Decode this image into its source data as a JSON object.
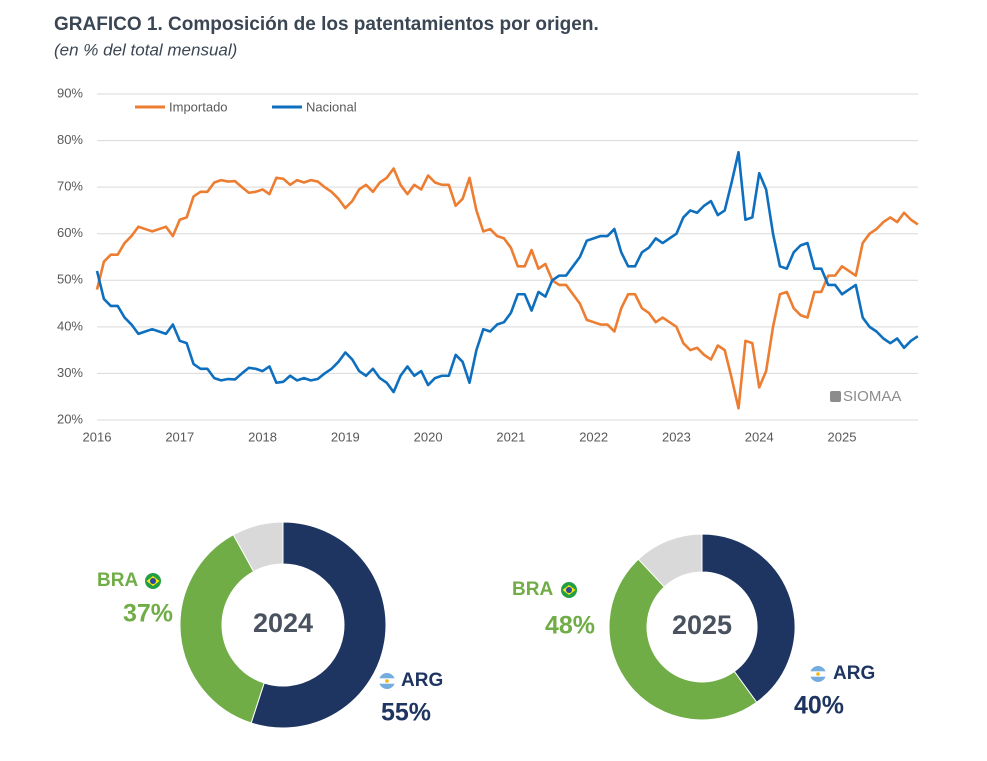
{
  "chart_data": [
    {
      "type": "line",
      "title": "GRAFICO 1. Composición de los patentamientos por origen.",
      "subtitle": "(en % del total mensual)",
      "watermark": "SIOMAA",
      "legend": "upper left",
      "grid": true,
      "categories": [
        "2016",
        null,
        null,
        null,
        null,
        null,
        null,
        null,
        null,
        null,
        null,
        null,
        "2017",
        null,
        null,
        null,
        null,
        null,
        null,
        null,
        null,
        null,
        null,
        null,
        "2018",
        null,
        null,
        null,
        null,
        null,
        null,
        null,
        null,
        null,
        null,
        null,
        "2019",
        null,
        null,
        null,
        null,
        null,
        null,
        null,
        null,
        null,
        null,
        null,
        "2020",
        null,
        null,
        null,
        null,
        null,
        null,
        null,
        null,
        null,
        null,
        null,
        "2021",
        null,
        null,
        null,
        null,
        null,
        null,
        null,
        null,
        null,
        null,
        null,
        "2022",
        null,
        null,
        null,
        null,
        null,
        null,
        null,
        null,
        null,
        null,
        null,
        "2023",
        null,
        null,
        null,
        null,
        null,
        null,
        null,
        null,
        null,
        null,
        null,
        "2024",
        null,
        null,
        null,
        null,
        null,
        null,
        null,
        null,
        null,
        null,
        null,
        "2025",
        null,
        null,
        null,
        null,
        null,
        null,
        null,
        null,
        null,
        null,
        null
      ],
      "ylim": [
        20,
        90
      ],
      "yticks": [
        {
          "value": 20,
          "label": "20%"
        },
        {
          "value": 30,
          "label": "30%"
        },
        {
          "value": 40,
          "label": "40%"
        },
        {
          "value": 50,
          "label": "50%"
        },
        {
          "value": 60,
          "label": "60%"
        },
        {
          "value": 70,
          "label": "70%"
        },
        {
          "value": 80,
          "label": "80%"
        },
        {
          "value": 90,
          "label": "90%"
        }
      ],
      "series": [
        {
          "name": "Importado",
          "color": "#ed7d31",
          "values": [
            48,
            54,
            55.5,
            55.5,
            58,
            59.5,
            61.5,
            61,
            60.5,
            61,
            61.5,
            59.5,
            63,
            63.5,
            68,
            69,
            69,
            71,
            71.5,
            71.2,
            71.3,
            70,
            68.8,
            69,
            69.5,
            68.5,
            72,
            71.8,
            70.5,
            71.5,
            71,
            71.5,
            71.2,
            70,
            69,
            67.5,
            65.5,
            67,
            69.5,
            70.5,
            69,
            71,
            72,
            74,
            70.5,
            68.5,
            70.5,
            69.5,
            72.5,
            71,
            70.5,
            70.5,
            66,
            67.5,
            72,
            65,
            60.5,
            61,
            59.5,
            59,
            57,
            53,
            53,
            56.5,
            52.5,
            53.5,
            50,
            49,
            49,
            47,
            45,
            41.5,
            41,
            40.5,
            40.5,
            39,
            44,
            47,
            47,
            44,
            43,
            41,
            42,
            41,
            40,
            36.5,
            35,
            35.5,
            34,
            33,
            36,
            35,
            29,
            22.5,
            37,
            36.5,
            27,
            30.5,
            40,
            47,
            47.5,
            44,
            42.5,
            42,
            47.5,
            47.5,
            51,
            51,
            53,
            52,
            51,
            58,
            60,
            61,
            62.5,
            63.5,
            62.5,
            64.5,
            63,
            62
          ]
        },
        {
          "name": "Nacional",
          "color": "#0f6fbf",
          "values": [
            52,
            46,
            44.5,
            44.5,
            42,
            40.5,
            38.5,
            39,
            39.5,
            39,
            38.5,
            40.5,
            37,
            36.5,
            32,
            31,
            31,
            29,
            28.5,
            28.8,
            28.7,
            30,
            31.2,
            31,
            30.5,
            31.5,
            28,
            28.2,
            29.5,
            28.5,
            29,
            28.5,
            28.8,
            30,
            31,
            32.5,
            34.5,
            33,
            30.5,
            29.5,
            31,
            29,
            28,
            26,
            29.5,
            31.5,
            29.5,
            30.5,
            27.5,
            29,
            29.5,
            29.5,
            34,
            32.5,
            28,
            35,
            39.5,
            39,
            40.5,
            41,
            43,
            47,
            47,
            43.5,
            47.5,
            46.5,
            50,
            51,
            51,
            53,
            55,
            58.5,
            59,
            59.5,
            59.5,
            61,
            56,
            53,
            53,
            56,
            57,
            59,
            58,
            59,
            60,
            63.5,
            65,
            64.5,
            66,
            67,
            64,
            65,
            71,
            77.5,
            63,
            63.5,
            73,
            69.5,
            60,
            53,
            52.5,
            56,
            57.5,
            58,
            52.5,
            52.5,
            49,
            49,
            47,
            48,
            49,
            42,
            40,
            39,
            37.5,
            36.5,
            37.5,
            35.5,
            37,
            38
          ]
        }
      ]
    },
    {
      "type": "donut",
      "title": "2024",
      "categories": [
        "ARG",
        "BRA",
        null
      ],
      "values": [
        55,
        37,
        8
      ],
      "value_labels": [
        "55%",
        "37%",
        null
      ],
      "colors": [
        "#1f3561",
        "#70ad47",
        "#d9d9d9"
      ]
    },
    {
      "type": "donut",
      "title": "2025",
      "categories": [
        "ARG",
        "BRA",
        null
      ],
      "values": [
        40,
        48,
        12
      ],
      "value_labels": [
        "40%",
        "48%",
        null
      ],
      "colors": [
        "#1f3561",
        "#70ad47",
        "#d9d9d9"
      ]
    }
  ]
}
